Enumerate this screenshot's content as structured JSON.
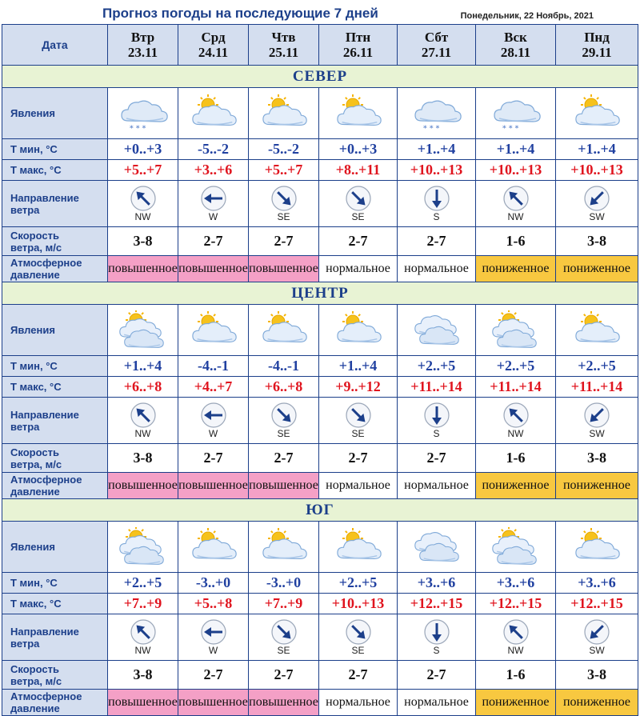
{
  "title": "Прогноз погоды на последующие 7 дней",
  "current_date": "Понедельник, 22 Ноябрь, 2021",
  "header_label": "Дата",
  "days": [
    {
      "name": "Втр",
      "date": "23.11"
    },
    {
      "name": "Срд",
      "date": "24.11"
    },
    {
      "name": "Чтв",
      "date": "25.11"
    },
    {
      "name": "Птн",
      "date": "26.11"
    },
    {
      "name": "Сбт",
      "date": "27.11"
    },
    {
      "name": "Вск",
      "date": "28.11"
    },
    {
      "name": "Пнд",
      "date": "29.11"
    }
  ],
  "row_labels": {
    "phenomena": "Явления",
    "tmin": "Т мин, °С",
    "tmax": "Т макс, °С",
    "wind_dir_1": "Направление",
    "wind_dir_2": "ветра",
    "wind_speed_1": "Скорость",
    "wind_speed_2": "ветра, м/с",
    "pressure_1": "Атмосферное",
    "pressure_2": "давление"
  },
  "colors": {
    "high": "#f4a0c6",
    "normal": "#e8c6d6",
    "low": "#f8c840",
    "header_blue": "#1c3f8a",
    "region_bg": "#e8f3d4"
  },
  "regions": [
    {
      "name": "СЕВЕР",
      "icons": [
        "cloud-snow-icon",
        "partly-cloudy-icon",
        "partly-cloudy-icon",
        "partly-cloudy-icon",
        "cloud-snow-icon",
        "cloud-snow-icon",
        "partly-cloudy-icon"
      ],
      "tmin": [
        "+0..+3",
        "-5..-2",
        "-5..-2",
        "+0..+3",
        "+1..+4",
        "+1..+4",
        "+1..+4"
      ],
      "tmax": [
        "+5..+7",
        "+3..+6",
        "+5..+7",
        "+8..+11",
        "+10..+13",
        "+10..+13",
        "+10..+13"
      ],
      "wind_dir": [
        "NW",
        "W",
        "SE",
        "SE",
        "S",
        "NW",
        "SW"
      ],
      "wind_speed": [
        "3-8",
        "2-7",
        "2-7",
        "2-7",
        "2-7",
        "1-6",
        "3-8"
      ],
      "pressure": [
        {
          "text": "повышенное",
          "level": "high"
        },
        {
          "text": "повышенное",
          "level": "high"
        },
        {
          "text": "повышенное",
          "level": "high"
        },
        {
          "text": "нормальное",
          "level": "normal"
        },
        {
          "text": "нормальное",
          "level": "normal"
        },
        {
          "text": "пониженное",
          "level": "low"
        },
        {
          "text": "пониженное",
          "level": "low"
        }
      ]
    },
    {
      "name": "ЦЕНТР",
      "icons": [
        "sun-clouds-icon",
        "partly-cloudy-icon",
        "partly-cloudy-icon",
        "partly-cloudy-icon",
        "clouds-icon",
        "sun-clouds-icon",
        "partly-cloudy-icon"
      ],
      "tmin": [
        "+1..+4",
        "-4..-1",
        "-4..-1",
        "+1..+4",
        "+2..+5",
        "+2..+5",
        "+2..+5"
      ],
      "tmax": [
        "+6..+8",
        "+4..+7",
        "+6..+8",
        "+9..+12",
        "+11..+14",
        "+11..+14",
        "+11..+14"
      ],
      "wind_dir": [
        "NW",
        "W",
        "SE",
        "SE",
        "S",
        "NW",
        "SW"
      ],
      "wind_speed": [
        "3-8",
        "2-7",
        "2-7",
        "2-7",
        "2-7",
        "1-6",
        "3-8"
      ],
      "pressure": [
        {
          "text": "повышенное",
          "level": "high"
        },
        {
          "text": "повышенное",
          "level": "high"
        },
        {
          "text": "повышенное",
          "level": "high"
        },
        {
          "text": "нормальное",
          "level": "normal"
        },
        {
          "text": "нормальное",
          "level": "normal"
        },
        {
          "text": "пониженное",
          "level": "low"
        },
        {
          "text": "пониженное",
          "level": "low"
        }
      ]
    },
    {
      "name": "ЮГ",
      "icons": [
        "sun-clouds-icon",
        "partly-cloudy-icon",
        "partly-cloudy-icon",
        "partly-cloudy-icon",
        "clouds-icon",
        "sun-clouds-icon",
        "partly-cloudy-icon"
      ],
      "tmin": [
        "+2..+5",
        "-3..+0",
        "-3..+0",
        "+2..+5",
        "+3..+6",
        "+3..+6",
        "+3..+6"
      ],
      "tmax": [
        "+7..+9",
        "+5..+8",
        "+7..+9",
        "+10..+13",
        "+12..+15",
        "+12..+15",
        "+12..+15"
      ],
      "wind_dir": [
        "NW",
        "W",
        "SE",
        "SE",
        "S",
        "NW",
        "SW"
      ],
      "wind_speed": [
        "3-8",
        "2-7",
        "2-7",
        "2-7",
        "2-7",
        "1-6",
        "3-8"
      ],
      "pressure": [
        {
          "text": "повышенное",
          "level": "high"
        },
        {
          "text": "повышенное",
          "level": "high"
        },
        {
          "text": "повышенное",
          "level": "high"
        },
        {
          "text": "нормальное",
          "level": "normal"
        },
        {
          "text": "нормальное",
          "level": "normal"
        },
        {
          "text": "пониженное",
          "level": "low"
        },
        {
          "text": "пониженное",
          "level": "low"
        }
      ]
    }
  ]
}
